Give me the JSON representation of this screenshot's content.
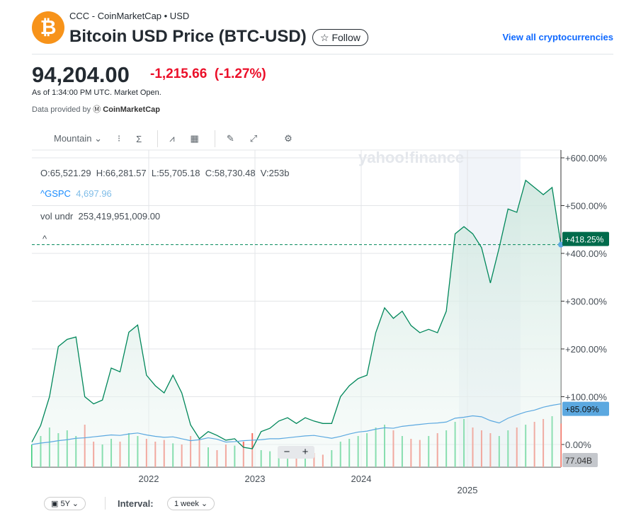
{
  "header": {
    "source": "CCC - CoinMarketCap • USD",
    "title": "Bitcoin USD Price (BTC-USD)",
    "follow": "Follow",
    "view_all": "View all cryptocurrencies",
    "logo_symbol": "₿"
  },
  "quote": {
    "price": "94,204.00",
    "change": "-1,215.66",
    "change_pct": "(-1.27%)",
    "as_of": "As of 1:34:00 PM UTC. Market Open.",
    "provided_by": "Data provided by",
    "provider": "CoinMarketCap"
  },
  "toolbar": {
    "chart_type": "Mountain"
  },
  "legend": {
    "ohlcv": "O:65,521.29  H:66,281.57  L:55,705.18  C:58,730.48  V:253b",
    "gspc_name": "^GSPC",
    "gspc_value": "4,697.96",
    "vol_name": "vol undr",
    "vol_value": "253,419,951,009.00"
  },
  "watermark": "yahoo!finance",
  "footer": {
    "range": "5Y",
    "interval_label": "Interval:",
    "interval": "1 week"
  },
  "colors": {
    "btc": "#00875a",
    "btcTag": "#006b4b",
    "gspc": "#5ba8e0",
    "up": "#3dcc7d",
    "down": "#f56f61"
  },
  "chart_data": {
    "type": "line",
    "x_start": 2020.9,
    "x_end": 2025.88,
    "y_ticks": [
      "+600.00%",
      "+500.00%",
      "+400.00%",
      "+300.00%",
      "+200.00%",
      "+100.00%",
      "0.00%"
    ],
    "y_tick_values": [
      600,
      500,
      400,
      300,
      200,
      100,
      0
    ],
    "ylim": [
      -20,
      620
    ],
    "x_ticks": [
      "2022",
      "2023",
      "2024",
      "2025"
    ],
    "x_tick_values": [
      2022,
      2023,
      2024,
      2025
    ],
    "series": [
      {
        "name": "BTC-USD",
        "unit": "%",
        "values": [
          5,
          40,
          100,
          205,
          220,
          225,
          100,
          85,
          93,
          160,
          152,
          235,
          250,
          145,
          123,
          108,
          145,
          108,
          41,
          12,
          27,
          19,
          9,
          12,
          -6,
          -9,
          27,
          34,
          49,
          56,
          44,
          56,
          49,
          44,
          44,
          100,
          123,
          138,
          145,
          234,
          286,
          264,
          279,
          249,
          234,
          241,
          234,
          279,
          441,
          456,
          441,
          412,
          338,
          412,
          493,
          486,
          553,
          538,
          523,
          538,
          418.25
        ],
        "last_label": "+418.25%"
      },
      {
        "name": "^GSPC",
        "unit": "%",
        "values": [
          0,
          3,
          5,
          8,
          10,
          13,
          14,
          16,
          18,
          20,
          19,
          22,
          24,
          20,
          17,
          15,
          16,
          12,
          8,
          10,
          14,
          11,
          5,
          6,
          8,
          9,
          10,
          12,
          12,
          14,
          16,
          18,
          19,
          16,
          13,
          17,
          22,
          26,
          28,
          32,
          35,
          34,
          38,
          40,
          42,
          44,
          45,
          47,
          55,
          57,
          60,
          58,
          50,
          45,
          55,
          62,
          68,
          72,
          78,
          82,
          85.09
        ],
        "last_label": "+85.09%"
      },
      {
        "name": "Volume",
        "unit": "B",
        "values": [
          40,
          55,
          70,
          60,
          65,
          55,
          75,
          45,
          40,
          50,
          45,
          60,
          55,
          50,
          45,
          48,
          42,
          40,
          55,
          50,
          35,
          30,
          40,
          38,
          45,
          60,
          30,
          28,
          25,
          32,
          30,
          28,
          25,
          22,
          30,
          45,
          50,
          55,
          60,
          70,
          75,
          65,
          55,
          50,
          48,
          55,
          60,
          65,
          80,
          85,
          70,
          65,
          60,
          55,
          65,
          70,
          75,
          80,
          85,
          90,
          77.04
        ],
        "last_label": "77.04B"
      }
    ]
  }
}
